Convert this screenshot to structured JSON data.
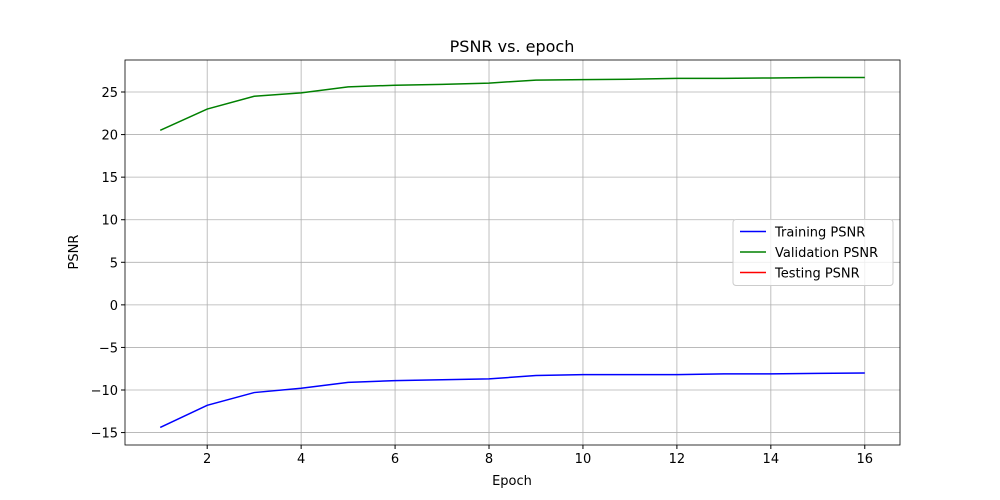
{
  "chart_data": {
    "type": "line",
    "title": "PSNR vs. epoch",
    "x_label": "Epoch",
    "y_label": "PSNR",
    "x": [
      1,
      2,
      3,
      4,
      5,
      6,
      7,
      8,
      9,
      10,
      11,
      12,
      13,
      14,
      15,
      16
    ],
    "series": [
      {
        "name": "Training PSNR",
        "color": "#0000ff",
        "values": [
          -14.4,
          -11.8,
          -10.3,
          -9.8,
          -9.1,
          -8.9,
          -8.8,
          -8.7,
          -8.3,
          -8.2,
          -8.2,
          -8.2,
          -8.1,
          -8.1,
          -8.05,
          -8.0
        ]
      },
      {
        "name": "Validation PSNR",
        "color": "#008000",
        "values": [
          20.5,
          23.0,
          24.5,
          24.9,
          25.6,
          25.8,
          25.9,
          26.05,
          26.4,
          26.45,
          26.5,
          26.6,
          26.6,
          26.65,
          26.7,
          26.7
        ]
      },
      {
        "name": "Testing PSNR",
        "color": "#ff0000",
        "values": [
          null,
          null,
          null,
          null,
          null,
          null,
          null,
          null,
          null,
          null,
          null,
          null,
          null,
          null,
          null,
          null
        ]
      }
    ],
    "xlim": [
      0.25,
      16.75
    ],
    "xticks": [
      2,
      4,
      6,
      8,
      10,
      12,
      14,
      16
    ],
    "ylim": [
      -16.46,
      28.76
    ],
    "yticks": [
      {
        "value": -15,
        "label": "−15"
      },
      {
        "value": -10,
        "label": "−10"
      },
      {
        "value": -5,
        "label": "−5"
      },
      0,
      5,
      10,
      15,
      20,
      25
    ],
    "grid": true,
    "legend": "center right"
  }
}
